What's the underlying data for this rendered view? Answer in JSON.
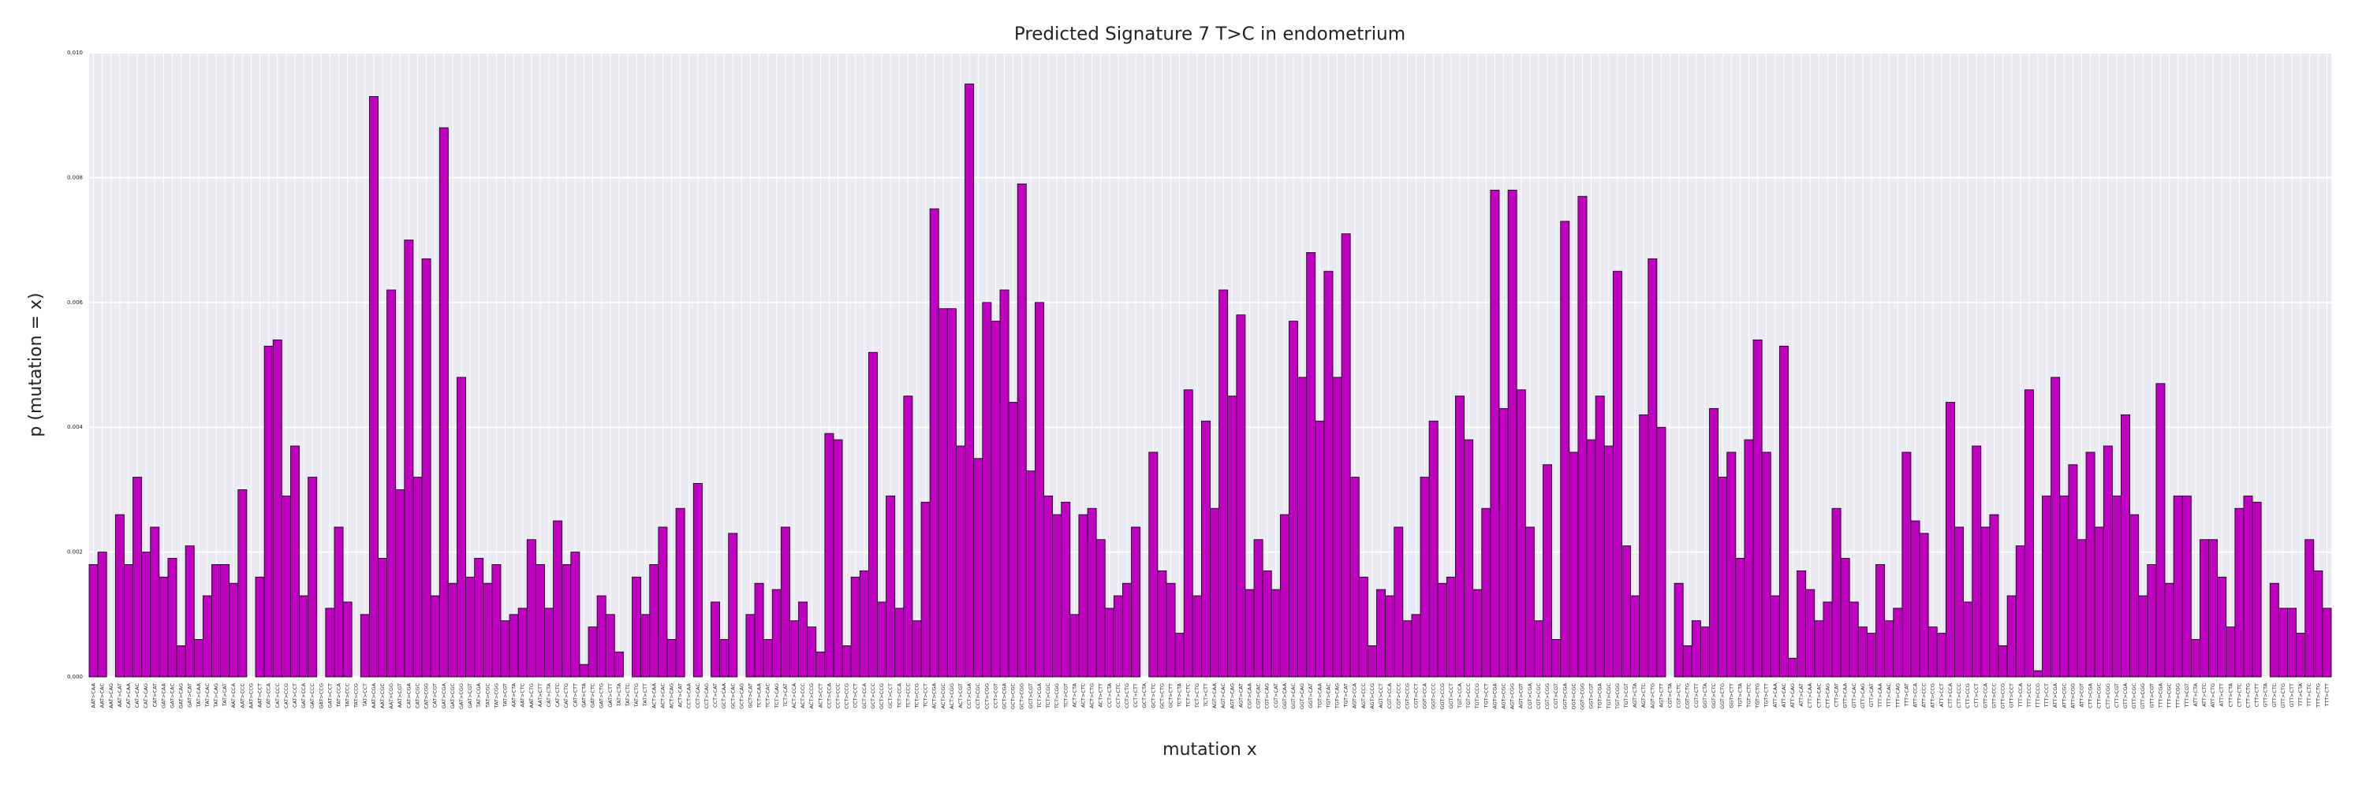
{
  "chart_data": {
    "type": "bar",
    "title": "Predicted Signature 7 T>C in endometrium",
    "xlabel": "mutation x",
    "ylabel": "p (mutation = x)",
    "color": "#c000c0",
    "grid": true,
    "categories": [
      "AAT>CAA",
      "AAT>CAC",
      "AAT>CAG",
      "AAT>CAT",
      "CAT>CAA",
      "CAT>CAC",
      "CAT>CAG",
      "CAT>CAT",
      "GAT>CAA",
      "GAT>CAC",
      "GAT>CAG",
      "GAT>CAT",
      "TAT>CAA",
      "TAT>CAC",
      "TAT>CAG",
      "TAT>CAT",
      "AAT>CCA",
      "AAT>CCC",
      "AAT>CCG",
      "AAT>CCT",
      "CAT>CCA",
      "CAT>CCC",
      "CAT>CCG",
      "CAT>CCT",
      "GAT>CCA",
      "GAT>CCC",
      "GAT>CCG",
      "GAT>CCT",
      "TAT>CCA",
      "TAT>CCC",
      "TAT>CCG",
      "TAT>CCT",
      "AAT>CGA",
      "AAT>CGC",
      "AAT>CGG",
      "AAT>CGT",
      "CAT>CGA",
      "CAT>CGC",
      "CAT>CGG",
      "CAT>CGT",
      "GAT>CGA",
      "GAT>CGC",
      "GAT>CGG",
      "GAT>CGT",
      "TAT>CGA",
      "TAT>CGC",
      "TAT>CGG",
      "TAT>CGT",
      "AAT>CTA",
      "AAT>CTC",
      "AAT>CTG",
      "AAT>CTT",
      "CAT>CTA",
      "CAT>CTC",
      "CAT>CTG",
      "CAT>CTT",
      "GAT>CTA",
      "GAT>CTC",
      "GAT>CTG",
      "GAT>CTT",
      "TAT>CTA",
      "TAT>CTC",
      "TAT>CTG",
      "TAT>CTT",
      "ACT>CAA",
      "ACT>CAC",
      "ACT>CAG",
      "ACT>CAT",
      "CCT>CAA",
      "CCT>CAC",
      "CCT>CAG",
      "CCT>CAT",
      "GCT>CAA",
      "GCT>CAC",
      "GCT>CAG",
      "GCT>CAT",
      "TCT>CAA",
      "TCT>CAC",
      "TCT>CAG",
      "TCT>CAT",
      "ACT>CCA",
      "ACT>CCC",
      "ACT>CCG",
      "ACT>CCT",
      "CCT>CCA",
      "CCT>CCC",
      "CCT>CCG",
      "CCT>CCT",
      "GCT>CCA",
      "GCT>CCC",
      "GCT>CCG",
      "GCT>CCT",
      "TCT>CCA",
      "TCT>CCC",
      "TCT>CCG",
      "TCT>CCT",
      "ACT>CGA",
      "ACT>CGC",
      "ACT>CGG",
      "ACT>CGT",
      "CCT>CGA",
      "CCT>CGC",
      "CCT>CGG",
      "CCT>CGT",
      "GCT>CGA",
      "GCT>CGC",
      "GCT>CGG",
      "GCT>CGT",
      "TCT>CGA",
      "TCT>CGC",
      "TCT>CGG",
      "TCT>CGT",
      "ACT>CTA",
      "ACT>CTC",
      "ACT>CTG",
      "ACT>CTT",
      "CCT>CTA",
      "CCT>CTC",
      "CCT>CTG",
      "CCT>CTT",
      "GCT>CTA",
      "GCT>CTC",
      "GCT>CTG",
      "GCT>CTT",
      "TCT>CTA",
      "TCT>CTC",
      "TCT>CTG",
      "TCT>CTT",
      "AGT>CAA",
      "AGT>CAC",
      "AGT>CAG",
      "AGT>CAT",
      "CGT>CAA",
      "CGT>CAC",
      "CGT>CAG",
      "CGT>CAT",
      "GGT>CAA",
      "GGT>CAC",
      "GGT>CAG",
      "GGT>CAT",
      "TGT>CAA",
      "TGT>CAC",
      "TGT>CAG",
      "TGT>CAT",
      "AGT>CCA",
      "AGT>CCC",
      "AGT>CCG",
      "AGT>CCT",
      "CGT>CCA",
      "CGT>CCC",
      "CGT>CCG",
      "CGT>CCT",
      "GGT>CCA",
      "GGT>CCC",
      "GGT>CCG",
      "GGT>CCT",
      "TGT>CCA",
      "TGT>CCC",
      "TGT>CCG",
      "TGT>CCT",
      "AGT>CGA",
      "AGT>CGC",
      "AGT>CGG",
      "AGT>CGT",
      "CGT>CGA",
      "CGT>CGC",
      "CGT>CGG",
      "CGT>CGT",
      "GGT>CGA",
      "GGT>CGC",
      "GGT>CGG",
      "GGT>CGT",
      "TGT>CGA",
      "TGT>CGC",
      "TGT>CGG",
      "TGT>CGT",
      "AGT>CTA",
      "AGT>CTC",
      "AGT>CTG",
      "AGT>CTT",
      "CGT>CTA",
      "CGT>CTC",
      "CGT>CTG",
      "CGT>CTT",
      "GGT>CTA",
      "GGT>CTC",
      "GGT>CTG",
      "GGT>CTT",
      "TGT>CTA",
      "TGT>CTC",
      "TGT>CTG",
      "TGT>CTT",
      "ATT>CAA",
      "ATT>CAC",
      "ATT>CAG",
      "ATT>CAT",
      "CTT>CAA",
      "CTT>CAC",
      "CTT>CAG",
      "CTT>CAT",
      "GTT>CAA",
      "GTT>CAC",
      "GTT>CAG",
      "GTT>CAT",
      "TTT>CAA",
      "TTT>CAC",
      "TTT>CAG",
      "TTT>CAT",
      "ATT>CCA",
      "ATT>CCC",
      "ATT>CCG",
      "ATT>CCT",
      "CTT>CCA",
      "CTT>CCC",
      "CTT>CCG",
      "CTT>CCT",
      "GTT>CCA",
      "GTT>CCC",
      "GTT>CCG",
      "GTT>CCT",
      "TTT>CCA",
      "TTT>CCC",
      "TTT>CCG",
      "TTT>CCT",
      "ATT>CGA",
      "ATT>CGC",
      "ATT>CGG",
      "ATT>CGT",
      "CTT>CGA",
      "CTT>CGC",
      "CTT>CGG",
      "CTT>CGT",
      "GTT>CGA",
      "GTT>CGC",
      "GTT>CGG",
      "GTT>CGT",
      "TTT>CGA",
      "TTT>CGC",
      "TTT>CGG",
      "TTT>CGT",
      "ATT>CTA",
      "ATT>CTC",
      "ATT>CTG",
      "ATT>CTT",
      "CTT>CTA",
      "CTT>CTC",
      "CTT>CTG",
      "CTT>CTT",
      "GTT>CTA",
      "GTT>CTC",
      "GTT>CTG",
      "GTT>CTT",
      "TTT>CTA",
      "TTT>CTC",
      "TTT>CTG",
      "TTT>CTT"
    ],
    "values": [
      0.0018,
      0.002,
      0,
      0.0026,
      0.0018,
      0.0032,
      0.002,
      0.0024,
      0.0016,
      0.0019,
      0.0005,
      0.0021,
      0.0006,
      0.0013,
      0.0018,
      0.0018,
      0.0015,
      0.003,
      0,
      0.0016,
      0.0053,
      0.0054,
      0.0029,
      0.0037,
      0.0013,
      0.0032,
      0,
      0.0011,
      0.0024,
      0.0012,
      0,
      0.001,
      0.0093,
      0.0019,
      0.0062,
      0.003,
      0.007,
      0.0032,
      0.0067,
      0.0013,
      0.0088,
      0.0015,
      0.0048,
      0.0016,
      0.0019,
      0.0015,
      0.0018,
      0.0009,
      0.001,
      0.0011,
      0.0022,
      0.0018,
      0.0011,
      0.0025,
      0.0018,
      0.002,
      0.0002,
      0.0008,
      0.0013,
      0.001,
      0.0004,
      0,
      0.0016,
      0.001,
      0.0018,
      0.0024,
      0.0006,
      0.0027,
      0,
      0.0031,
      0,
      0.0012,
      0.0006,
      0.0023,
      0,
      0.001,
      0.0015,
      0.0006,
      0.0014,
      0.0024,
      0.0009,
      0.0012,
      0.0008,
      0.0004,
      0.0039,
      0.0038,
      0.0005,
      0.0016,
      0.0017,
      0.0052,
      0.0012,
      0.0029,
      0.0011,
      0.0045,
      0.0009,
      0.0028,
      0.0075,
      0.0059,
      0.0059,
      0.0037,
      0.0095,
      0.0035,
      0.006,
      0.0057,
      0.0062,
      0.0044,
      0.0079,
      0.0033,
      0.006,
      0.0029,
      0.0026,
      0.0028,
      0.001,
      0.0026,
      0.0027,
      0.0022,
      0.0011,
      0.0013,
      0.0015,
      0.0024,
      0,
      0.0036,
      0.0017,
      0.0015,
      0.0007,
      0.0046,
      0.0013,
      0.0041,
      0.0027,
      0.0062,
      0.0045,
      0.0058,
      0.0014,
      0.0022,
      0.0017,
      0.0014,
      0.0026,
      0.0057,
      0.0048,
      0.0068,
      0.0041,
      0.0065,
      0.0048,
      0.0071,
      0.0032,
      0.0016,
      0.0005,
      0.0014,
      0.0013,
      0.0024,
      0.0009,
      0.001,
      0.0032,
      0.0041,
      0.0015,
      0.0016,
      0.0045,
      0.0038,
      0.0014,
      0.0027,
      0.0078,
      0.0043,
      0.0078,
      0.0046,
      0.0024,
      0.0009,
      0.0034,
      0.0006,
      0.0073,
      0.0036,
      0.0077,
      0.0038,
      0.0045,
      0.0037,
      0.0065,
      0.0021,
      0.0013,
      0.0042,
      0.0067,
      0.004,
      0,
      0.0015,
      0.0005,
      0.0009,
      0.0008,
      0.0043,
      0.0032,
      0.0036,
      0.0019,
      0.0038,
      0.0054,
      0.0036,
      0.0013,
      0.0053,
      0.0003,
      0.0017,
      0.0014,
      0.0009,
      0.0012,
      0.0027,
      0.0019,
      0.0012,
      0.0008,
      0.0007,
      0.0018,
      0.0009,
      0.0011,
      0.0036,
      0.0025,
      0.0023,
      0.0008,
      0.0007,
      0.0044,
      0.0024,
      0.0012,
      0.0037,
      0.0024,
      0.0026,
      0.0005,
      0.0013,
      0.0021,
      0.0046,
      0.0001,
      0.0029,
      0.0048,
      0.0029,
      0.0034,
      0.0022,
      0.0036,
      0.0024,
      0.0037,
      0.0029,
      0.0042,
      0.0026,
      0.0013,
      0.0018,
      0.0047,
      0.0015,
      0.0029,
      0.0029,
      0.0006,
      0.0022,
      0.0022,
      0.0016,
      0.0008,
      0.0027,
      0.0029,
      0.0028,
      0,
      0.0015,
      0.0011,
      0.0011,
      0.0007,
      0.0022,
      0.0017,
      0.0011
    ],
    "ylim": [
      0,
      0.01
    ],
    "yticks": [
      {
        "value": 0,
        "label": "0.000"
      },
      0.002,
      0.004,
      0.006,
      0.008,
      {
        "value": 0.01,
        "label": "0.010"
      }
    ]
  }
}
